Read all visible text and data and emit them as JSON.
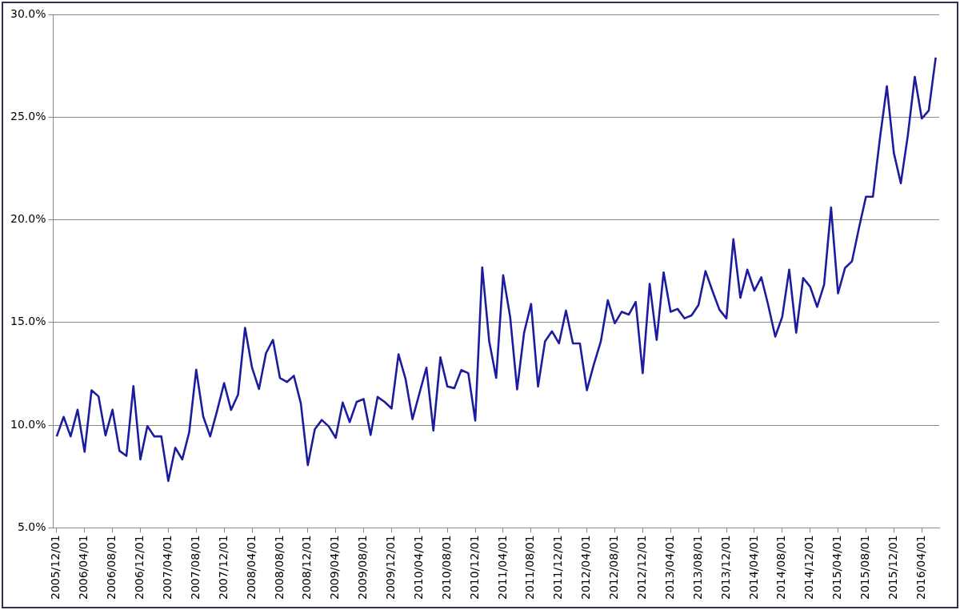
{
  "chart_data": {
    "type": "line",
    "categories": [
      "2005/12/01",
      null,
      null,
      null,
      "2006/04/01",
      null,
      null,
      null,
      "2006/08/01",
      null,
      null,
      null,
      "2006/12/01",
      null,
      null,
      null,
      "2007/04/01",
      null,
      null,
      null,
      "2007/08/01",
      null,
      null,
      null,
      "2007/12/01",
      null,
      null,
      null,
      "2008/04/01",
      null,
      null,
      null,
      "2008/08/01",
      null,
      null,
      null,
      "2008/12/01",
      null,
      null,
      null,
      "2009/04/01",
      null,
      null,
      null,
      "2009/08/01",
      null,
      null,
      null,
      "2009/12/01",
      null,
      null,
      null,
      "2010/04/01",
      null,
      null,
      null,
      "2010/08/01",
      null,
      null,
      null,
      "2010/12/01",
      null,
      null,
      null,
      "2011/04/01",
      null,
      null,
      null,
      "2011/08/01",
      null,
      null,
      null,
      "2011/12/01",
      null,
      null,
      null,
      "2012/04/01",
      null,
      null,
      null,
      "2012/08/01",
      null,
      null,
      null,
      "2012/12/01",
      null,
      null,
      null,
      "2013/04/01",
      null,
      null,
      null,
      "2013/08/01",
      null,
      null,
      null,
      "2013/12/01",
      null,
      null,
      null,
      "2014/04/01",
      null,
      null,
      null,
      "2014/08/01",
      null,
      null,
      null,
      "2014/12/01",
      null,
      null,
      null,
      "2015/04/01",
      null,
      null,
      null,
      "2015/08/01",
      null,
      null,
      null,
      "2015/12/01",
      null,
      null,
      null,
      "2016/04/01",
      null,
      null
    ],
    "series": [
      {
        "color": "#1c1c9e",
        "values": [
          9.45,
          10.4,
          9.45,
          10.75,
          8.7,
          11.7,
          11.4,
          9.5,
          10.75,
          8.75,
          8.5,
          11.9,
          8.33,
          9.95,
          9.45,
          9.45,
          7.28,
          8.9,
          8.33,
          9.66,
          12.7,
          10.43,
          9.45,
          10.7,
          12.05,
          10.74,
          11.48,
          14.74,
          12.8,
          11.76,
          13.5,
          14.15,
          12.3,
          12.1,
          12.4,
          11.06,
          8.05,
          9.8,
          10.25,
          9.94,
          9.38,
          11.1,
          10.15,
          11.13,
          11.27,
          9.52,
          11.37,
          11.13,
          10.81,
          13.45,
          12.26,
          10.29,
          11.55,
          12.8,
          9.73,
          13.3,
          11.88,
          11.8,
          12.68,
          12.53,
          10.22,
          17.68,
          14.08,
          12.3,
          17.3,
          15.27,
          11.74,
          14.5,
          15.9,
          11.88,
          14.08,
          14.57,
          13.98,
          15.58,
          13.98,
          13.98,
          11.7,
          12.96,
          14.08,
          16.08,
          14.96,
          15.52,
          15.38,
          16.0,
          12.53,
          16.88,
          14.15,
          17.44,
          15.52,
          15.66,
          15.2,
          15.34,
          15.85,
          17.5,
          16.53,
          15.62,
          15.2,
          19.05,
          16.2,
          17.57,
          16.55,
          17.2,
          15.83,
          14.31,
          15.27,
          17.57,
          14.5,
          17.16,
          16.74,
          15.76,
          16.84,
          20.59,
          16.42,
          17.65,
          17.98,
          19.6,
          21.12,
          21.12,
          23.95,
          26.5,
          23.25,
          21.78,
          24.1,
          26.96,
          24.93,
          25.32,
          27.9
        ]
      }
    ],
    "ylim": [
      5,
      30
    ],
    "yticks": [
      {
        "value": 5,
        "label": "5.0%"
      },
      {
        "value": 10,
        "label": "10.0%"
      },
      {
        "value": 15,
        "label": "15.0%"
      },
      {
        "value": 20,
        "label": "20.0%"
      },
      {
        "value": 25,
        "label": "25.0%"
      },
      {
        "value": 30,
        "label": "30.0%"
      }
    ],
    "grid": "y",
    "marker": "none",
    "line_style": "solid"
  }
}
